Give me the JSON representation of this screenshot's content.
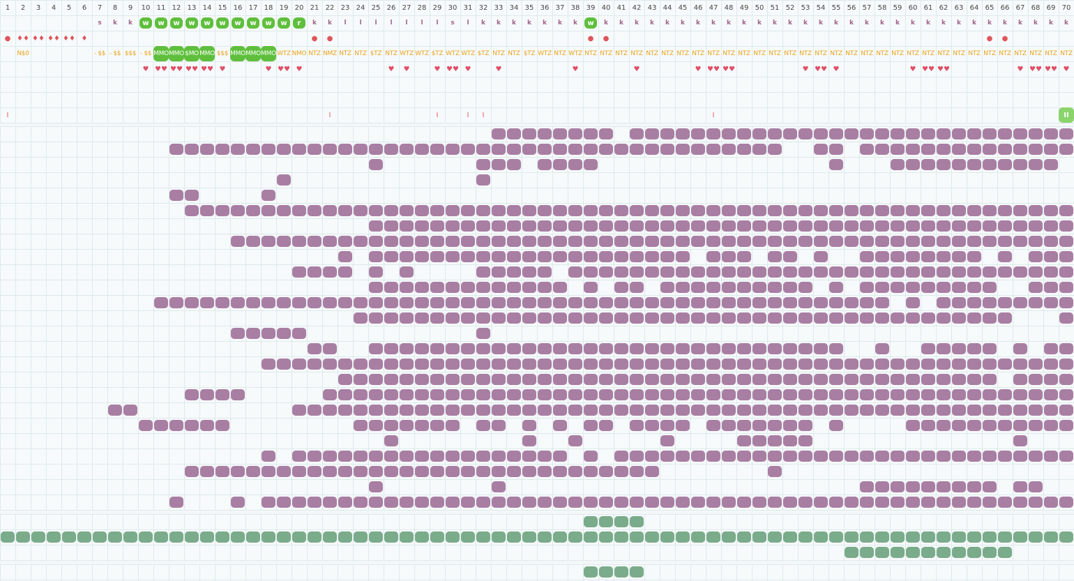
{
  "header": {
    "columns": [
      "1",
      "2",
      "3",
      "4",
      "5",
      "6",
      "7",
      "8",
      "9",
      "10",
      "11",
      "12",
      "13",
      "14",
      "15",
      "16",
      "17",
      "18",
      "19",
      "20",
      "21",
      "22",
      "23",
      "24",
      "25",
      "26",
      "27",
      "28",
      "29",
      "30",
      "31",
      "32",
      "33",
      "34",
      "35",
      "36",
      "37",
      "38",
      "39",
      "40",
      "41",
      "42",
      "43",
      "44",
      "45",
      "46",
      "47",
      "48",
      "49",
      "50",
      "51",
      "52",
      "53",
      "54",
      "55",
      "56",
      "57",
      "58",
      "59",
      "60",
      "61",
      "62",
      "63",
      "64",
      "65",
      "66",
      "67",
      "68",
      "69",
      "70"
    ],
    "row_kind": [
      "",
      "",
      "",
      "",
      "",
      "",
      "s",
      "k",
      "k",
      "w",
      "w",
      "w",
      "w",
      "w",
      "w",
      "w",
      "w",
      "w",
      "w",
      "r",
      "k",
      "k",
      "l",
      "l",
      "l",
      "l",
      "l",
      "l",
      "l",
      "s",
      "l",
      "k",
      "k",
      "k",
      "k",
      "k",
      "k",
      "k",
      "w",
      "k",
      "k",
      "k",
      "k",
      "k",
      "k",
      "k",
      "k",
      "k",
      "k",
      "k",
      "k",
      "k",
      "k",
      "k",
      "k",
      "k",
      "k",
      "k",
      "k",
      "k",
      "k",
      "k",
      "k",
      "k",
      "k",
      "k",
      "k",
      "k",
      "k",
      "k"
    ],
    "row_dots": [
      "●",
      "♦♦",
      "♦♦",
      "♦♦",
      "♦♦",
      "♦",
      "",
      "",
      "",
      "",
      "",
      "",
      "",
      "",
      "",
      "",
      "",
      "",
      "",
      "",
      "●",
      "●",
      "",
      "",
      "",
      "",
      "",
      "",
      "",
      "",
      "",
      "",
      "",
      "",
      "",
      "",
      "",
      "",
      "●",
      "●",
      "",
      "",
      "",
      "",
      "",
      "",
      "",
      "",
      "",
      "",
      "",
      "",
      "",
      "",
      "",
      "",
      "",
      "",
      "",
      "",
      "",
      "",
      "",
      "",
      "●",
      "●",
      "",
      "",
      "",
      ""
    ],
    "row_labels": [
      "",
      "N$0",
      "",
      "",
      "",
      "",
      "- $$",
      "- $$",
      "$$$",
      "- $$",
      "MMO",
      "MMO",
      "$MO",
      "MMO",
      "$$$",
      "MMO",
      "MMO",
      "MMO",
      "WTZ",
      "NMO",
      "NTZ",
      "NMZ",
      "NTZ",
      "NTZ",
      "$TZ",
      "NTZ",
      "WTZ",
      "WTZ",
      "$TZ",
      "WTZ",
      "WTZ",
      "$TZ",
      "NTZ",
      "NTZ",
      "$TZ",
      "WTZ",
      "NTZ",
      "WTZ",
      "NTZ",
      "NTZ",
      "NTZ",
      "NTZ",
      "NTZ",
      "NTZ",
      "NTZ",
      "NTZ",
      "NTZ",
      "NTZ",
      "NTZ",
      "NTZ",
      "NTZ",
      "NTZ",
      "NTZ",
      "NTZ",
      "NTZ",
      "NTZ",
      "NTZ",
      "NTZ",
      "NTZ",
      "NTZ",
      "NTZ",
      "NTZ",
      "NTZ",
      "NTZ",
      "NTZ",
      "NTZ",
      "NTZ",
      "NTZ",
      "NTZ",
      "NTZ"
    ],
    "row_hearts": [
      "",
      "",
      "",
      "",
      "",
      "",
      "",
      "",
      "",
      "♥",
      "♥♥",
      "♥♥",
      "♥♥",
      "♥♥",
      "♥",
      "",
      "",
      "♥",
      "♥♥",
      "♥",
      "",
      "",
      "",
      "",
      "",
      "♥",
      "♥",
      "",
      "♥",
      "♥♥",
      "♥",
      "",
      "♥",
      "",
      "",
      "",
      "",
      "♥",
      "",
      "",
      "",
      "♥",
      "",
      "",
      "",
      "♥",
      "♥♥",
      "♥♥",
      "",
      "",
      "",
      "",
      "♥",
      "♥♥",
      "♥",
      "",
      "",
      "",
      "",
      "♥",
      "♥♥",
      "♥♥",
      "",
      "",
      "",
      "",
      "♥",
      "♥♥",
      "♥♥",
      "♥"
    ],
    "row_ticks": [
      "I",
      "",
      "",
      "",
      "",
      "",
      "",
      "",
      "",
      "",
      "",
      "",
      "",
      "",
      "",
      "",
      "",
      "",
      "",
      "",
      "",
      "I",
      "",
      "",
      "",
      "",
      "",
      "",
      "I",
      "",
      "I",
      "I",
      "",
      "",
      "",
      "",
      "",
      "",
      "",
      "",
      "",
      "",
      "",
      "",
      "",
      "",
      "I",
      "",
      "",
      "",
      "",
      "",
      "",
      "",
      "",
      "",
      "",
      "",
      "",
      "",
      "",
      "",
      "",
      "",
      "",
      "",
      "",
      "",
      "",
      "II"
    ]
  },
  "colors": {
    "purple": "#a97ea3",
    "green": "#7aab8a",
    "light_green": "#8bd46c",
    "k_text": "#a0628a",
    "label_text": "#e8a21a",
    "red": "#e0555b"
  },
  "main_grid": {
    "rows": [
      "................................xxxxxxxx.xxxxxxxxxxxxxxxxxxxxxxxxxxxxxx",
      "...........xxxxxxxxxxxxxxxxxxxxxxxxxxxxxxxxxxxxxxxx..xx.xxxxxxxxxxxxxxx",
      "........................x......xxx.xxxx...............x...xxxxxxxxxxx..xx",
      "..................x............x......................................",
      "...........xx....x....................................................",
      "............xxxxxxxxxxxxxxxxxxxxxxxxxxxxxxxxxxxxxxxxxxxxxxxxxxxxxxxxxxx",
      "........................xxxxxxxxxxxxxxxxxxxxxxxxxxxxxxxxxxxxxxxxxxxxxx",
      "...............xxxxxxxxxxxxxxxxxxxxxxxxxxxxxxxxxxxxxxxxxxxxxxxxxxxxxxx",
      "......................x.xxxxxxxxxxxxxxxxxxxxx.xxx.xx.x..xxxxxxxx.x.xxx",
      "...................xxxx.x.x....xxxxx.xxxxxxxxxxxxxxxxxxxxxxxxxxxxxxxxx",
      "........................xxxxxxxxxxxxx.x.xx.xxxxxxxxxx.x.xxxxxxxxx..xxx",
      "..........xxxxxxxxxxxxxxxxxxxxxxxxxxxxxxxxxxxxxxxxxxxxxxxx.x.xxxxxxxxxxx",
      ".......................xxxxxxxxxxxxxxxxxxxxxxxxxxxxxxxxxxxxxxxxxxx...x.x",
      "...............xxxxx...........x......................................",
      "....................xx..xxxxxxxxxxxxxxxxxxxxxxxxxxxxxxx..x..xxxxx.x.xxxx",
      ".................xxxxxxxxxxxxxxxxxxxxxxxxxxxxxxxxxxxxxxxxxxxxxxxxxxxxxx",
      "......................xxxxxxxxxxxxxxxxxxxxxxxxxxxxxxxxxxxxxxxxxxx.xxxxx",
      "............xxxx.....xxxxxxxxxxxxxxxxxxxxxxxxxxxxxxxxxxxxxxxxxxxxxxxxxx",
      ".......xx..........xxxxxxxxxxxxxxxxxxxxxxxxxxxxxxxxxxxxxxxxxxxxxxxxxxxxx",
      ".........xxxxxx........xxxxxxx.xx.x.x.xx.xxxx.xxxxxxx.x....xxxxxxxxxxxx",
      ".........................x........x..x.....x....xxxxx.............x....",
      ".................x.xxxxxxxxxxxxxxxxxx.x.xxxxxxxxxxxxxxxxxxxxxxxxxxxxxxx",
      "............xxxxxxxxxxxxxxxxxxxxxxxxxxxxxxx.......x...................",
      "........................x.......x.......................xxxxxxxxx.xx..",
      "...........x...x.xxxxxxxxxxxxxxxxxxxxxxxxxxxxxxxxxxxxxxxxxxxxxxxxxxxxx"
    ]
  },
  "bottom_grid": {
    "rows": [
      "......................................xxxx............................",
      "xxxxxxxxxxxxxxxxxxxxxxxxxxxxxxxxxxxxxxxxxxxxxxxxxxxxxxxxxxxxxxxxxxxxxx",
      ".......................................................xxxxxxxxxxx....."
    ]
  },
  "footer_grid": {
    "rows": [
      "......................................xxxx............................"
    ]
  }
}
